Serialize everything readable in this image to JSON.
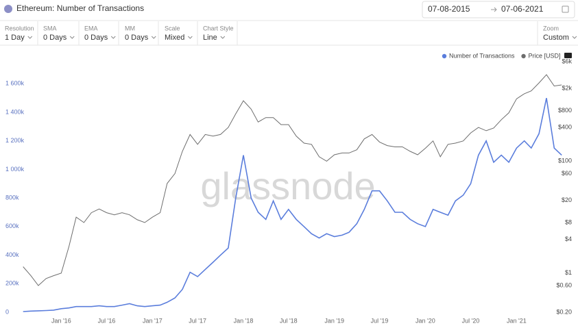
{
  "header": {
    "title": "Ethereum: Number of Transactions",
    "date_from": "07-08-2015",
    "date_to": "07-06-2021"
  },
  "toolbar": [
    {
      "label": "Resolution",
      "value": "1 Day"
    },
    {
      "label": "SMA",
      "value": "0 Days"
    },
    {
      "label": "EMA",
      "value": "0 Days"
    },
    {
      "label": "MM",
      "value": "0 Days"
    },
    {
      "label": "Scale",
      "value": "Mixed"
    },
    {
      "label": "Chart Style",
      "value": "Line"
    }
  ],
  "zoom": {
    "label": "Zoom",
    "value": "Custom"
  },
  "chart_data": {
    "type": "line",
    "watermark": "glassnode",
    "legend": "top-right",
    "xlim": [
      "2015-07-08",
      "2021-07-06"
    ],
    "xticks": [
      {
        "value": "2016-01",
        "label": "Jan '16"
      },
      {
        "value": "2016-07",
        "label": "Jul '16"
      },
      {
        "value": "2017-01",
        "label": "Jan '17"
      },
      {
        "value": "2017-07",
        "label": "Jul '17"
      },
      {
        "value": "2018-01",
        "label": "Jan '18"
      },
      {
        "value": "2018-07",
        "label": "Jul '18"
      },
      {
        "value": "2019-01",
        "label": "Jan '19"
      },
      {
        "value": "2019-07",
        "label": "Jul '19"
      },
      {
        "value": "2020-01",
        "label": "Jan '20"
      },
      {
        "value": "2020-07",
        "label": "Jul '20"
      },
      {
        "value": "2021-01",
        "label": "Jan '21"
      }
    ],
    "ylim": [
      0,
      1755000
    ],
    "yticks": [
      0,
      {
        "value": 200000,
        "label": "200k"
      },
      {
        "value": 400000,
        "label": "400k"
      },
      {
        "value": 600000,
        "label": "600k"
      },
      {
        "value": 800000,
        "label": "800k"
      },
      {
        "value": 1000000,
        "label": "1 000k"
      },
      {
        "value": 1200000,
        "label": "1 200k"
      },
      {
        "value": 1400000,
        "label": "1 400k"
      },
      {
        "value": 1600000,
        "label": "1 600k"
      }
    ],
    "y2lim": [
      0.2,
      6000
    ],
    "y2scale": "log",
    "y2ticks": [
      {
        "value": 6000,
        "label": "$6k"
      },
      {
        "value": 2000,
        "label": "$2k"
      },
      {
        "value": 800,
        "label": "$800"
      },
      {
        "value": 400,
        "label": "$400"
      },
      {
        "value": 100,
        "label": "$100"
      },
      {
        "value": 60,
        "label": "$60"
      },
      {
        "value": 20,
        "label": "$20"
      },
      {
        "value": 8,
        "label": "$8"
      },
      {
        "value": 4,
        "label": "$4"
      },
      {
        "value": 1,
        "label": "$1"
      },
      {
        "value": 0.6,
        "label": "$0.60"
      },
      {
        "value": 0.2,
        "label": "$0.20"
      }
    ],
    "x": [
      "2015-08",
      "2015-09",
      "2015-10",
      "2015-11",
      "2015-12",
      "2016-01",
      "2016-02",
      "2016-03",
      "2016-04",
      "2016-05",
      "2016-06",
      "2016-07",
      "2016-08",
      "2016-09",
      "2016-10",
      "2016-11",
      "2016-12",
      "2017-01",
      "2017-02",
      "2017-03",
      "2017-04",
      "2017-05",
      "2017-06",
      "2017-07",
      "2017-08",
      "2017-09",
      "2017-10",
      "2017-11",
      "2017-12",
      "2018-01",
      "2018-02",
      "2018-03",
      "2018-04",
      "2018-05",
      "2018-06",
      "2018-07",
      "2018-08",
      "2018-09",
      "2018-10",
      "2018-11",
      "2018-12",
      "2019-01",
      "2019-02",
      "2019-03",
      "2019-04",
      "2019-05",
      "2019-06",
      "2019-07",
      "2019-08",
      "2019-09",
      "2019-10",
      "2019-11",
      "2019-12",
      "2020-01",
      "2020-02",
      "2020-03",
      "2020-04",
      "2020-05",
      "2020-06",
      "2020-07",
      "2020-08",
      "2020-09",
      "2020-10",
      "2020-11",
      "2020-12",
      "2021-01",
      "2021-02",
      "2021-03",
      "2021-04",
      "2021-05",
      "2021-06",
      "2021-07"
    ],
    "series": [
      {
        "name": "Number of Transactions",
        "color": "#5a7ddc",
        "axis": "y",
        "values": [
          5000,
          8000,
          10000,
          12000,
          15000,
          25000,
          30000,
          40000,
          40000,
          40000,
          45000,
          40000,
          40000,
          50000,
          60000,
          45000,
          40000,
          45000,
          50000,
          70000,
          100000,
          160000,
          280000,
          250000,
          300000,
          350000,
          400000,
          450000,
          800000,
          1100000,
          800000,
          700000,
          650000,
          780000,
          650000,
          720000,
          650000,
          600000,
          550000,
          520000,
          550000,
          530000,
          540000,
          560000,
          620000,
          720000,
          850000,
          850000,
          780000,
          700000,
          700000,
          650000,
          620000,
          600000,
          720000,
          700000,
          680000,
          780000,
          820000,
          900000,
          1100000,
          1200000,
          1050000,
          1100000,
          1050000,
          1150000,
          1200000,
          1150000,
          1250000,
          1500000,
          1150000,
          1100000
        ]
      },
      {
        "name": "Price [USD]",
        "color": "#6d6d6d",
        "axis": "y2",
        "values": [
          1.3,
          0.9,
          0.6,
          0.8,
          0.9,
          1.0,
          3,
          10,
          8,
          12,
          14,
          12,
          11,
          12,
          11,
          9,
          8,
          10,
          12,
          40,
          60,
          150,
          300,
          200,
          300,
          280,
          300,
          400,
          700,
          1200,
          850,
          500,
          600,
          600,
          450,
          450,
          280,
          210,
          200,
          120,
          100,
          130,
          140,
          140,
          160,
          250,
          300,
          220,
          190,
          180,
          180,
          150,
          130,
          170,
          230,
          120,
          200,
          210,
          230,
          320,
          400,
          350,
          390,
          550,
          730,
          1300,
          1600,
          1800,
          2500,
          3500,
          2200,
          2300
        ]
      }
    ]
  }
}
